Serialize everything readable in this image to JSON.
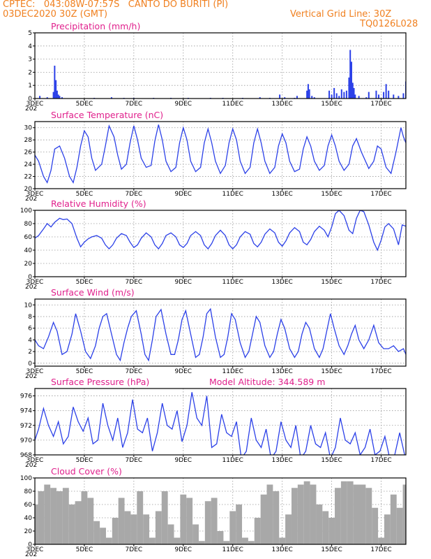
{
  "header": {
    "line1": "CPTEC:   043:08W-07:57S   CANTO DO BURITI (PI)",
    "line2": "03DEC2020 30Z (GMT)",
    "grid_note": "Vertical Grid Line: 30Z",
    "code": "TQ0126L028",
    "color": "#f08020"
  },
  "colors": {
    "line": "#2b40e8",
    "cloud": "#a8a8a8",
    "title": "#e0208c",
    "frame": "#000000",
    "grid": "#999999"
  },
  "x_axis": {
    "days": [
      3,
      18
    ],
    "tick_days": [
      3,
      5,
      7,
      9,
      11,
      13,
      15,
      17
    ],
    "tick_labels": [
      "3DEC",
      "5DEC",
      "7DEC",
      "9DEC",
      "11DEC",
      "13DEC",
      "15DEC",
      "17DEC"
    ],
    "year_stub": "202"
  },
  "chart_data": [
    {
      "type": "bar",
      "title": "Precipitation (mm/h)",
      "ylim": [
        0,
        5
      ],
      "yticks": [
        0,
        1,
        2,
        3,
        4,
        5
      ],
      "x": [
        3.2,
        3.5,
        3.75,
        3.8,
        3.85,
        3.9,
        3.95,
        4.0,
        4.1,
        5.4,
        6.1,
        6.6,
        7.0,
        7.8,
        8.5,
        9.2,
        10.1,
        10.6,
        11.4,
        12.1,
        12.5,
        12.9,
        13.1,
        13.5,
        13.6,
        14.0,
        14.05,
        14.1,
        14.2,
        14.3,
        14.9,
        15.0,
        15.1,
        15.2,
        15.3,
        15.4,
        15.5,
        15.6,
        15.7,
        15.75,
        15.8,
        15.85,
        15.9,
        15.95,
        16.1,
        16.4,
        16.5,
        16.8,
        16.9,
        17.1,
        17.2,
        17.3,
        17.5,
        17.7,
        17.9,
        18.0
      ],
      "values": [
        0.2,
        0.1,
        0.5,
        2.5,
        1.4,
        0.6,
        0.3,
        0.2,
        0.1,
        0.05,
        0.1,
        0.05,
        0.05,
        0.05,
        0.05,
        0.05,
        0.05,
        0.05,
        0.05,
        0.1,
        0.05,
        0.3,
        0.1,
        0.05,
        0.2,
        0.6,
        1.1,
        0.7,
        0.2,
        0.1,
        0.6,
        0.3,
        0.8,
        0.4,
        0.2,
        0.7,
        0.5,
        0.6,
        1.6,
        3.7,
        2.8,
        1.2,
        0.8,
        0.3,
        0.2,
        0.1,
        0.5,
        0.6,
        0.3,
        0.5,
        1.1,
        0.6,
        0.3,
        0.2,
        0.4,
        1.3
      ]
    },
    {
      "type": "line",
      "title": "Surface Temperature (nC)",
      "ylim": [
        20,
        31
      ],
      "yticks": [
        20,
        22,
        24,
        26,
        28,
        30
      ],
      "x": [
        3.0,
        3.15,
        3.35,
        3.5,
        3.65,
        3.8,
        4.0,
        4.2,
        4.4,
        4.55,
        4.7,
        4.85,
        5.0,
        5.15,
        5.3,
        5.45,
        5.7,
        5.85,
        6.0,
        6.2,
        6.35,
        6.5,
        6.7,
        6.85,
        7.0,
        7.15,
        7.3,
        7.5,
        7.7,
        7.85,
        8.0,
        8.15,
        8.3,
        8.5,
        8.7,
        8.85,
        9.0,
        9.15,
        9.3,
        9.5,
        9.7,
        9.85,
        10.0,
        10.15,
        10.3,
        10.5,
        10.7,
        10.85,
        11.0,
        11.15,
        11.3,
        11.5,
        11.7,
        11.85,
        12.0,
        12.15,
        12.3,
        12.5,
        12.7,
        12.85,
        13.0,
        13.15,
        13.3,
        13.5,
        13.7,
        13.85,
        14.0,
        14.15,
        14.3,
        14.5,
        14.7,
        14.85,
        15.0,
        15.15,
        15.3,
        15.5,
        15.7,
        15.85,
        16.0,
        16.2,
        16.5,
        16.7,
        16.85,
        17.0,
        17.2,
        17.4,
        17.6,
        17.8,
        17.9,
        18.0
      ],
      "values": [
        25.5,
        24.5,
        22.0,
        21.0,
        23.0,
        26.5,
        27.0,
        25.0,
        22.0,
        21.0,
        23.5,
        27.0,
        29.5,
        28.5,
        25.0,
        23.0,
        24.0,
        27.0,
        30.3,
        28.5,
        25.5,
        23.2,
        24.0,
        27.5,
        30.3,
        28.0,
        25.0,
        23.5,
        23.8,
        27.8,
        30.5,
        28.0,
        24.5,
        22.8,
        23.5,
        27.5,
        30.0,
        28.0,
        24.5,
        22.8,
        23.5,
        27.5,
        29.8,
        27.5,
        24.5,
        22.5,
        23.8,
        27.5,
        29.8,
        28.0,
        24.5,
        22.5,
        23.5,
        27.5,
        29.8,
        27.5,
        24.5,
        22.5,
        23.5,
        27.0,
        29.0,
        27.5,
        24.5,
        22.8,
        23.2,
        26.5,
        28.5,
        27.0,
        24.5,
        23.0,
        23.8,
        27.0,
        28.8,
        27.0,
        24.5,
        23.0,
        24.0,
        27.0,
        28.2,
        26.0,
        23.3,
        24.5,
        27.0,
        26.5,
        23.5,
        22.5,
        26.0,
        30.0,
        28.5,
        27.5
      ]
    },
    {
      "type": "line",
      "title": "Relative Humidity (%)",
      "ylim": [
        0,
        100
      ],
      "yticks": [
        0,
        20,
        40,
        60,
        80,
        100
      ],
      "x": [
        3.0,
        3.15,
        3.35,
        3.5,
        3.65,
        3.8,
        4.0,
        4.15,
        4.3,
        4.5,
        4.7,
        4.85,
        5.0,
        5.15,
        5.3,
        5.5,
        5.7,
        5.85,
        6.0,
        6.15,
        6.3,
        6.5,
        6.7,
        6.85,
        7.0,
        7.15,
        7.3,
        7.5,
        7.7,
        7.85,
        8.0,
        8.15,
        8.3,
        8.5,
        8.7,
        8.85,
        9.0,
        9.15,
        9.3,
        9.5,
        9.7,
        9.85,
        10.0,
        10.15,
        10.3,
        10.5,
        10.7,
        10.85,
        11.0,
        11.15,
        11.3,
        11.5,
        11.7,
        11.85,
        12.0,
        12.15,
        12.3,
        12.5,
        12.7,
        12.85,
        13.0,
        13.15,
        13.3,
        13.5,
        13.7,
        13.85,
        14.0,
        14.15,
        14.3,
        14.5,
        14.7,
        14.85,
        15.0,
        15.15,
        15.3,
        15.5,
        15.7,
        15.85,
        16.0,
        16.15,
        16.3,
        16.5,
        16.7,
        16.85,
        17.0,
        17.15,
        17.3,
        17.5,
        17.7,
        17.85,
        18.0
      ],
      "values": [
        58,
        62,
        72,
        80,
        75,
        82,
        88,
        86,
        87,
        80,
        58,
        45,
        52,
        57,
        60,
        62,
        58,
        48,
        42,
        48,
        58,
        65,
        62,
        52,
        44,
        48,
        58,
        66,
        60,
        48,
        42,
        50,
        62,
        66,
        60,
        48,
        44,
        50,
        62,
        68,
        62,
        48,
        42,
        50,
        62,
        70,
        62,
        48,
        42,
        48,
        60,
        68,
        64,
        50,
        45,
        52,
        64,
        72,
        66,
        52,
        46,
        54,
        66,
        74,
        68,
        52,
        48,
        56,
        68,
        76,
        70,
        60,
        75,
        95,
        100,
        92,
        70,
        65,
        88,
        100,
        98,
        78,
        52,
        40,
        55,
        75,
        80,
        72,
        48,
        78,
        76
      ]
    },
    {
      "type": "line",
      "title": "Surface Wind (m/s)",
      "ylim": [
        -0.5,
        11
      ],
      "yticks": [
        0,
        2,
        4,
        6,
        8,
        10
      ],
      "x": [
        3.0,
        3.15,
        3.35,
        3.55,
        3.75,
        3.9,
        4.1,
        4.3,
        4.5,
        4.65,
        4.85,
        5.05,
        5.25,
        5.45,
        5.6,
        5.75,
        5.9,
        6.1,
        6.3,
        6.45,
        6.6,
        6.75,
        6.9,
        7.1,
        7.3,
        7.45,
        7.6,
        7.75,
        7.9,
        8.1,
        8.3,
        8.5,
        8.65,
        8.8,
        8.95,
        9.1,
        9.3,
        9.5,
        9.65,
        9.8,
        9.95,
        10.1,
        10.3,
        10.5,
        10.65,
        10.8,
        10.95,
        11.1,
        11.3,
        11.5,
        11.65,
        11.8,
        11.95,
        12.1,
        12.3,
        12.5,
        12.65,
        12.8,
        12.95,
        13.1,
        13.3,
        13.5,
        13.65,
        13.8,
        13.95,
        14.1,
        14.3,
        14.5,
        14.65,
        14.8,
        14.95,
        15.1,
        15.3,
        15.5,
        15.65,
        15.8,
        15.95,
        16.1,
        16.3,
        16.5,
        16.7,
        16.9,
        17.1,
        17.3,
        17.5,
        17.7,
        17.9,
        18.0
      ],
      "values": [
        4.0,
        3.0,
        2.5,
        4.5,
        7.0,
        5.5,
        1.5,
        2.0,
        5.0,
        8.5,
        5.5,
        2.0,
        0.8,
        3.0,
        6.0,
        8.0,
        8.5,
        5.0,
        1.5,
        0.5,
        3.5,
        6.0,
        8.0,
        9.0,
        5.0,
        1.5,
        0.5,
        4.0,
        8.0,
        9.2,
        5.0,
        1.5,
        1.5,
        4.0,
        7.5,
        9.0,
        5.0,
        1.0,
        1.5,
        4.5,
        8.5,
        9.3,
        4.5,
        1.0,
        1.5,
        4.5,
        8.5,
        7.5,
        3.5,
        1.0,
        2.0,
        5.0,
        8.0,
        7.0,
        3.0,
        1.0,
        2.0,
        5.0,
        7.5,
        6.0,
        2.5,
        1.0,
        2.0,
        5.0,
        7.0,
        6.0,
        2.5,
        1.0,
        2.5,
        5.5,
        8.5,
        6.0,
        3.0,
        1.5,
        3.0,
        5.0,
        6.5,
        4.0,
        2.5,
        4.0,
        6.5,
        3.5,
        2.5,
        2.5,
        3.0,
        2.0,
        2.5,
        1.5
      ]
    },
    {
      "type": "line",
      "title": "Surface Pressure (hPa)",
      "annotation": "Model Altitude: 344.589 m",
      "ylim": [
        968,
        977
      ],
      "yticks": [
        968,
        970,
        972,
        974,
        976
      ],
      "x": [
        3.0,
        3.15,
        3.35,
        3.55,
        3.75,
        3.95,
        4.15,
        4.35,
        4.55,
        4.75,
        4.95,
        5.15,
        5.35,
        5.55,
        5.75,
        5.95,
        6.15,
        6.35,
        6.55,
        6.75,
        6.95,
        7.15,
        7.35,
        7.55,
        7.75,
        7.95,
        8.15,
        8.35,
        8.55,
        8.75,
        8.95,
        9.15,
        9.35,
        9.55,
        9.75,
        9.95,
        10.15,
        10.35,
        10.55,
        10.75,
        10.95,
        11.15,
        11.35,
        11.55,
        11.75,
        11.95,
        12.15,
        12.35,
        12.55,
        12.75,
        12.95,
        13.15,
        13.35,
        13.55,
        13.75,
        13.95,
        14.15,
        14.35,
        14.55,
        14.75,
        14.95,
        15.15,
        15.35,
        15.55,
        15.75,
        15.95,
        16.15,
        16.35,
        16.55,
        16.75,
        16.95,
        17.15,
        17.35,
        17.55,
        17.75,
        17.95
      ],
      "values": [
        970.0,
        971.5,
        974.3,
        972.0,
        970.5,
        972.5,
        969.5,
        970.5,
        974.5,
        972.5,
        971.2,
        973.0,
        969.5,
        970.0,
        975.0,
        972.0,
        970.0,
        973.0,
        969.0,
        971.0,
        975.5,
        971.5,
        971.0,
        973.0,
        968.5,
        971.0,
        975.0,
        972.0,
        971.5,
        974.0,
        969.8,
        972.0,
        976.5,
        973.0,
        972.0,
        976.0,
        969.0,
        969.5,
        973.5,
        971.0,
        970.5,
        972.5,
        967.5,
        968.5,
        973.0,
        970.0,
        969.0,
        971.5,
        967.5,
        968.5,
        972.5,
        970.0,
        969.0,
        972.0,
        967.5,
        968.5,
        972.0,
        969.5,
        969.0,
        971.0,
        967.5,
        969.0,
        973.0,
        970.0,
        969.5,
        971.0,
        968.0,
        969.0,
        971.5,
        968.0,
        968.5,
        970.5,
        967.5,
        968.0,
        971.0,
        968.0
      ]
    },
    {
      "type": "bar",
      "title": "Cloud Cover (%)",
      "ylim": [
        0,
        100
      ],
      "yticks": [
        0,
        20,
        40,
        60,
        80,
        100
      ],
      "x": [
        3.0,
        3.25,
        3.5,
        3.75,
        4.0,
        4.25,
        4.5,
        4.75,
        5.0,
        5.25,
        5.5,
        5.75,
        6.0,
        6.25,
        6.5,
        6.75,
        7.0,
        7.25,
        7.5,
        7.75,
        8.0,
        8.25,
        8.5,
        8.75,
        9.0,
        9.25,
        9.5,
        9.75,
        10.0,
        10.25,
        10.5,
        10.75,
        11.0,
        11.25,
        11.5,
        11.75,
        12.0,
        12.25,
        12.5,
        12.75,
        13.0,
        13.25,
        13.5,
        13.75,
        14.0,
        14.25,
        14.5,
        14.75,
        15.0,
        15.25,
        15.5,
        15.75,
        16.0,
        16.25,
        16.5,
        16.75,
        17.0,
        17.25,
        17.5,
        17.75,
        18.0
      ],
      "values": [
        60,
        80,
        90,
        85,
        80,
        85,
        60,
        65,
        80,
        70,
        35,
        25,
        10,
        40,
        70,
        50,
        45,
        80,
        45,
        10,
        50,
        80,
        30,
        10,
        75,
        70,
        30,
        5,
        65,
        70,
        20,
        5,
        50,
        60,
        10,
        5,
        40,
        75,
        90,
        80,
        10,
        45,
        85,
        90,
        95,
        90,
        60,
        50,
        40,
        85,
        95,
        95,
        90,
        90,
        85,
        55,
        10,
        45,
        75,
        55,
        90
      ]
    }
  ]
}
